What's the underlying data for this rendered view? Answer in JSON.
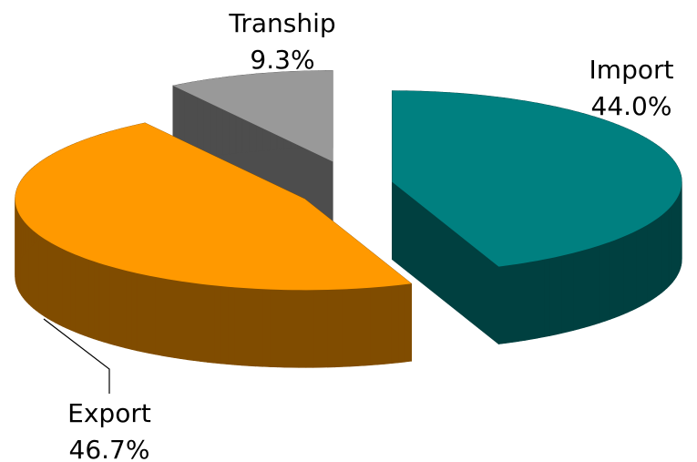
{
  "chart_data": {
    "type": "pie",
    "categories": [
      "Import",
      "Export",
      "Tranship"
    ],
    "values": [
      44.0,
      46.7,
      9.3
    ],
    "value_labels": [
      "44.0%",
      "46.7%",
      "9.3%"
    ],
    "colors": [
      "#008080",
      "#ff9900",
      "#999999"
    ],
    "side_colors": [
      "#004040",
      "#804c00",
      "#4d4d4d"
    ]
  }
}
